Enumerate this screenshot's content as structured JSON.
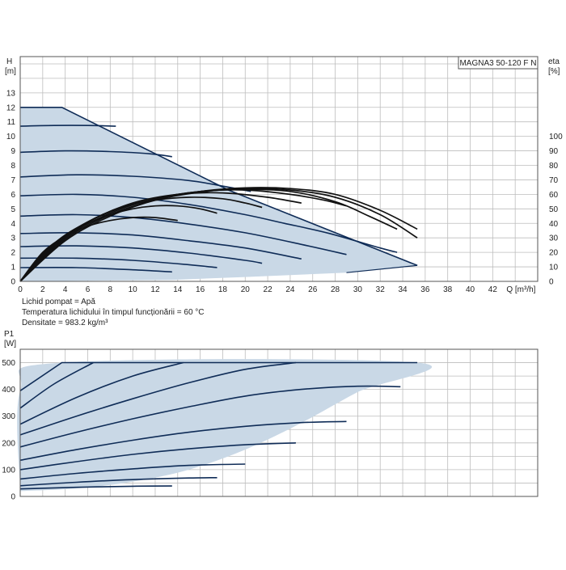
{
  "colors": {
    "envelope_fill": "#c9d8e6",
    "curve": "#0f2c57",
    "efficiency_curve": "#111111",
    "grid": "#bdbdbd",
    "frame": "#555555"
  },
  "chart_data": [
    {
      "type": "line",
      "name": "head",
      "title": "MAGNA3 50-120 F N",
      "ylabel": "H",
      "ylabel_unit": "[m]",
      "y2label": "eta",
      "y2label_unit": "[%]",
      "xlabel": "Q",
      "xlabel_unit": "[m³/h]",
      "xlim": [
        0,
        46
      ],
      "ylim": [
        0,
        15.5
      ],
      "y2lim": [
        0,
        155
      ],
      "x_ticks": [
        0,
        2,
        4,
        6,
        8,
        10,
        12,
        14,
        16,
        18,
        20,
        22,
        24,
        26,
        28,
        30,
        32,
        34,
        36,
        38,
        40,
        42
      ],
      "y_ticks": [
        0,
        1,
        2,
        3,
        4,
        5,
        6,
        7,
        8,
        9,
        10,
        11,
        12,
        13
      ],
      "y2_ticks": [
        0,
        10,
        20,
        30,
        40,
        50,
        60,
        70,
        80,
        90,
        100
      ],
      "grid": true,
      "envelope": [
        [
          0,
          0
        ],
        [
          0,
          12
        ],
        [
          3.7,
          12
        ],
        [
          18.5,
          6.3
        ],
        [
          35.3,
          1.1
        ],
        [
          29,
          0.6
        ],
        [
          20,
          0.3
        ],
        [
          13.5,
          0.1
        ],
        [
          0,
          0
        ]
      ],
      "series": [
        {
          "values": [
            [
              0,
              12
            ],
            [
              3.7,
              12
            ],
            [
              18.5,
              6.3
            ],
            [
              35.3,
              1.1
            ]
          ]
        },
        {
          "values": [
            [
              0,
              10.7
            ],
            [
              3,
              10.75
            ],
            [
              6,
              10.75
            ],
            [
              8.5,
              10.7
            ]
          ]
        },
        {
          "values": [
            [
              0,
              8.9
            ],
            [
              4,
              9.0
            ],
            [
              8,
              8.95
            ],
            [
              11.5,
              8.8
            ],
            [
              13.5,
              8.6
            ]
          ]
        },
        {
          "values": [
            [
              0,
              7.2
            ],
            [
              5,
              7.35
            ],
            [
              10,
              7.25
            ],
            [
              15,
              6.95
            ],
            [
              18.5,
              6.5
            ],
            [
              20.5,
              6.2
            ]
          ]
        },
        {
          "values": [
            [
              0,
              5.9
            ],
            [
              5,
              6.0
            ],
            [
              10,
              5.8
            ],
            [
              15,
              5.3
            ],
            [
              20,
              4.6
            ],
            [
              23.5,
              4.0
            ],
            [
              27.5,
              3.3
            ],
            [
              32,
              2.3
            ],
            [
              33.5,
              2.0
            ]
          ]
        },
        {
          "values": [
            [
              0,
              4.5
            ],
            [
              5,
              4.6
            ],
            [
              10,
              4.4
            ],
            [
              15,
              3.95
            ],
            [
              20,
              3.35
            ],
            [
              25,
              2.55
            ],
            [
              29,
              1.85
            ]
          ]
        },
        {
          "values": [
            [
              0,
              3.3
            ],
            [
              5,
              3.35
            ],
            [
              10,
              3.2
            ],
            [
              15,
              2.8
            ],
            [
              20,
              2.3
            ],
            [
              25,
              1.55
            ]
          ]
        },
        {
          "values": [
            [
              0,
              2.4
            ],
            [
              5,
              2.45
            ],
            [
              10,
              2.3
            ],
            [
              15,
              1.95
            ],
            [
              20,
              1.45
            ],
            [
              21.5,
              1.25
            ]
          ]
        },
        {
          "values": [
            [
              0,
              1.6
            ],
            [
              5,
              1.6
            ],
            [
              10,
              1.45
            ],
            [
              15,
              1.15
            ],
            [
              17.5,
              0.95
            ]
          ]
        },
        {
          "values": [
            [
              0,
              0.95
            ],
            [
              5,
              0.95
            ],
            [
              10,
              0.8
            ],
            [
              13.5,
              0.65
            ]
          ]
        }
      ],
      "efficiency_series": [
        {
          "axis": "y2",
          "values": [
            [
              0,
              0
            ],
            [
              2,
              20
            ],
            [
              4,
              31
            ],
            [
              6,
              38
            ],
            [
              8,
              42
            ],
            [
              10,
              44
            ],
            [
              12,
              44
            ],
            [
              14,
              42
            ]
          ]
        },
        {
          "axis": "y2",
          "values": [
            [
              0,
              0
            ],
            [
              2,
              19
            ],
            [
              4,
              31
            ],
            [
              6,
              40
            ],
            [
              8,
              46
            ],
            [
              10,
              50
            ],
            [
              12,
              52
            ],
            [
              14,
              52
            ],
            [
              16,
              50
            ],
            [
              17.5,
              47
            ]
          ]
        },
        {
          "axis": "y2",
          "values": [
            [
              0,
              0
            ],
            [
              3,
              26
            ],
            [
              6,
              41
            ],
            [
              9,
              51
            ],
            [
              12,
              56
            ],
            [
              15,
              58
            ],
            [
              18,
              57
            ],
            [
              20,
              54
            ],
            [
              21.5,
              51
            ]
          ]
        },
        {
          "axis": "y2",
          "values": [
            [
              0,
              0
            ],
            [
              3,
              25
            ],
            [
              6,
              41
            ],
            [
              10,
              54
            ],
            [
              14,
              60
            ],
            [
              18,
              61
            ],
            [
              22,
              58
            ],
            [
              25,
              54
            ]
          ]
        },
        {
          "axis": "y2",
          "values": [
            [
              0,
              0
            ],
            [
              4,
              31
            ],
            [
              8,
              48
            ],
            [
              12,
              57
            ],
            [
              16,
              62
            ],
            [
              20,
              63
            ],
            [
              24,
              60
            ],
            [
              27,
              56
            ],
            [
              29,
              52
            ]
          ]
        },
        {
          "axis": "y2",
          "values": [
            [
              0,
              0
            ],
            [
              4,
              30
            ],
            [
              8,
              47
            ],
            [
              12,
              57
            ],
            [
              16,
              62
            ],
            [
              20,
              63.5
            ],
            [
              24,
              62
            ],
            [
              28,
              55
            ],
            [
              31,
              45
            ],
            [
              33.5,
              36
            ]
          ]
        },
        {
          "axis": "y2",
          "values": [
            [
              0,
              0
            ],
            [
              4,
              29
            ],
            [
              8,
              46
            ],
            [
              12,
              56
            ],
            [
              16,
              61.5
            ],
            [
              20,
              64
            ],
            [
              24,
              63
            ],
            [
              28,
              58
            ],
            [
              32,
              46
            ],
            [
              35.3,
              30
            ]
          ]
        },
        {
          "axis": "y2",
          "values": [
            [
              0,
              0
            ],
            [
              4,
              28
            ],
            [
              8,
              45
            ],
            [
              12,
              56
            ],
            [
              16,
              62
            ],
            [
              20,
              64.5
            ],
            [
              24,
              64
            ],
            [
              28,
              60
            ],
            [
              32,
              49
            ],
            [
              35.3,
              36
            ]
          ]
        }
      ],
      "annotations": [
        "Lichid pompat = Apă",
        "Temperatura lichidului în timpul funcționării = 60 °C",
        "Densitate = 983.2 kg/m³"
      ]
    },
    {
      "type": "line",
      "name": "power",
      "ylabel": "P1",
      "ylabel_unit": "[W]",
      "xlim": [
        0,
        46
      ],
      "ylim": [
        0,
        550
      ],
      "y_ticks": [
        0,
        100,
        200,
        300,
        400,
        500
      ],
      "grid": true,
      "envelope": [
        [
          0,
          20
        ],
        [
          0,
          395
        ],
        [
          3.7,
          500
        ],
        [
          35.3,
          500
        ],
        [
          30,
          390
        ],
        [
          25,
          275
        ],
        [
          20,
          175
        ],
        [
          15,
          100
        ],
        [
          10,
          55
        ],
        [
          5,
          30
        ],
        [
          0,
          20
        ]
      ],
      "series": [
        {
          "values": [
            [
              0,
              395
            ],
            [
              3.7,
              500
            ],
            [
              35.3,
              500
            ]
          ]
        },
        {
          "values": [
            [
              0,
              330
            ],
            [
              3,
              420
            ],
            [
              6.5,
              500
            ]
          ]
        },
        {
          "values": [
            [
              0,
              270
            ],
            [
              5,
              370
            ],
            [
              10,
              450
            ],
            [
              14.5,
              500
            ]
          ]
        },
        {
          "values": [
            [
              0,
              230
            ],
            [
              5,
              300
            ],
            [
              10,
              365
            ],
            [
              15,
              425
            ],
            [
              20,
              475
            ],
            [
              24.5,
              500
            ]
          ]
        },
        {
          "values": [
            [
              0,
              185
            ],
            [
              5,
              240
            ],
            [
              10,
              290
            ],
            [
              15,
              335
            ],
            [
              20,
              375
            ],
            [
              25,
              400
            ],
            [
              30,
              412
            ],
            [
              33.8,
              410
            ]
          ]
        },
        {
          "values": [
            [
              0,
              135
            ],
            [
              5,
              175
            ],
            [
              10,
              210
            ],
            [
              15,
              240
            ],
            [
              20,
              262
            ],
            [
              25,
              276
            ],
            [
              29,
              280
            ]
          ]
        },
        {
          "values": [
            [
              0,
              100
            ],
            [
              5,
              130
            ],
            [
              10,
              157
            ],
            [
              15,
              178
            ],
            [
              20,
              193
            ],
            [
              24.5,
              200
            ]
          ]
        },
        {
          "values": [
            [
              0,
              65
            ],
            [
              5,
              86
            ],
            [
              10,
              103
            ],
            [
              15,
              116
            ],
            [
              20,
              121
            ]
          ]
        },
        {
          "values": [
            [
              0,
              40
            ],
            [
              5,
              53
            ],
            [
              10,
              63
            ],
            [
              15,
              69
            ],
            [
              17.5,
              70
            ]
          ]
        },
        {
          "values": [
            [
              0,
              28
            ],
            [
              5,
              34
            ],
            [
              10,
              38
            ],
            [
              13.5,
              39
            ]
          ]
        }
      ]
    }
  ]
}
